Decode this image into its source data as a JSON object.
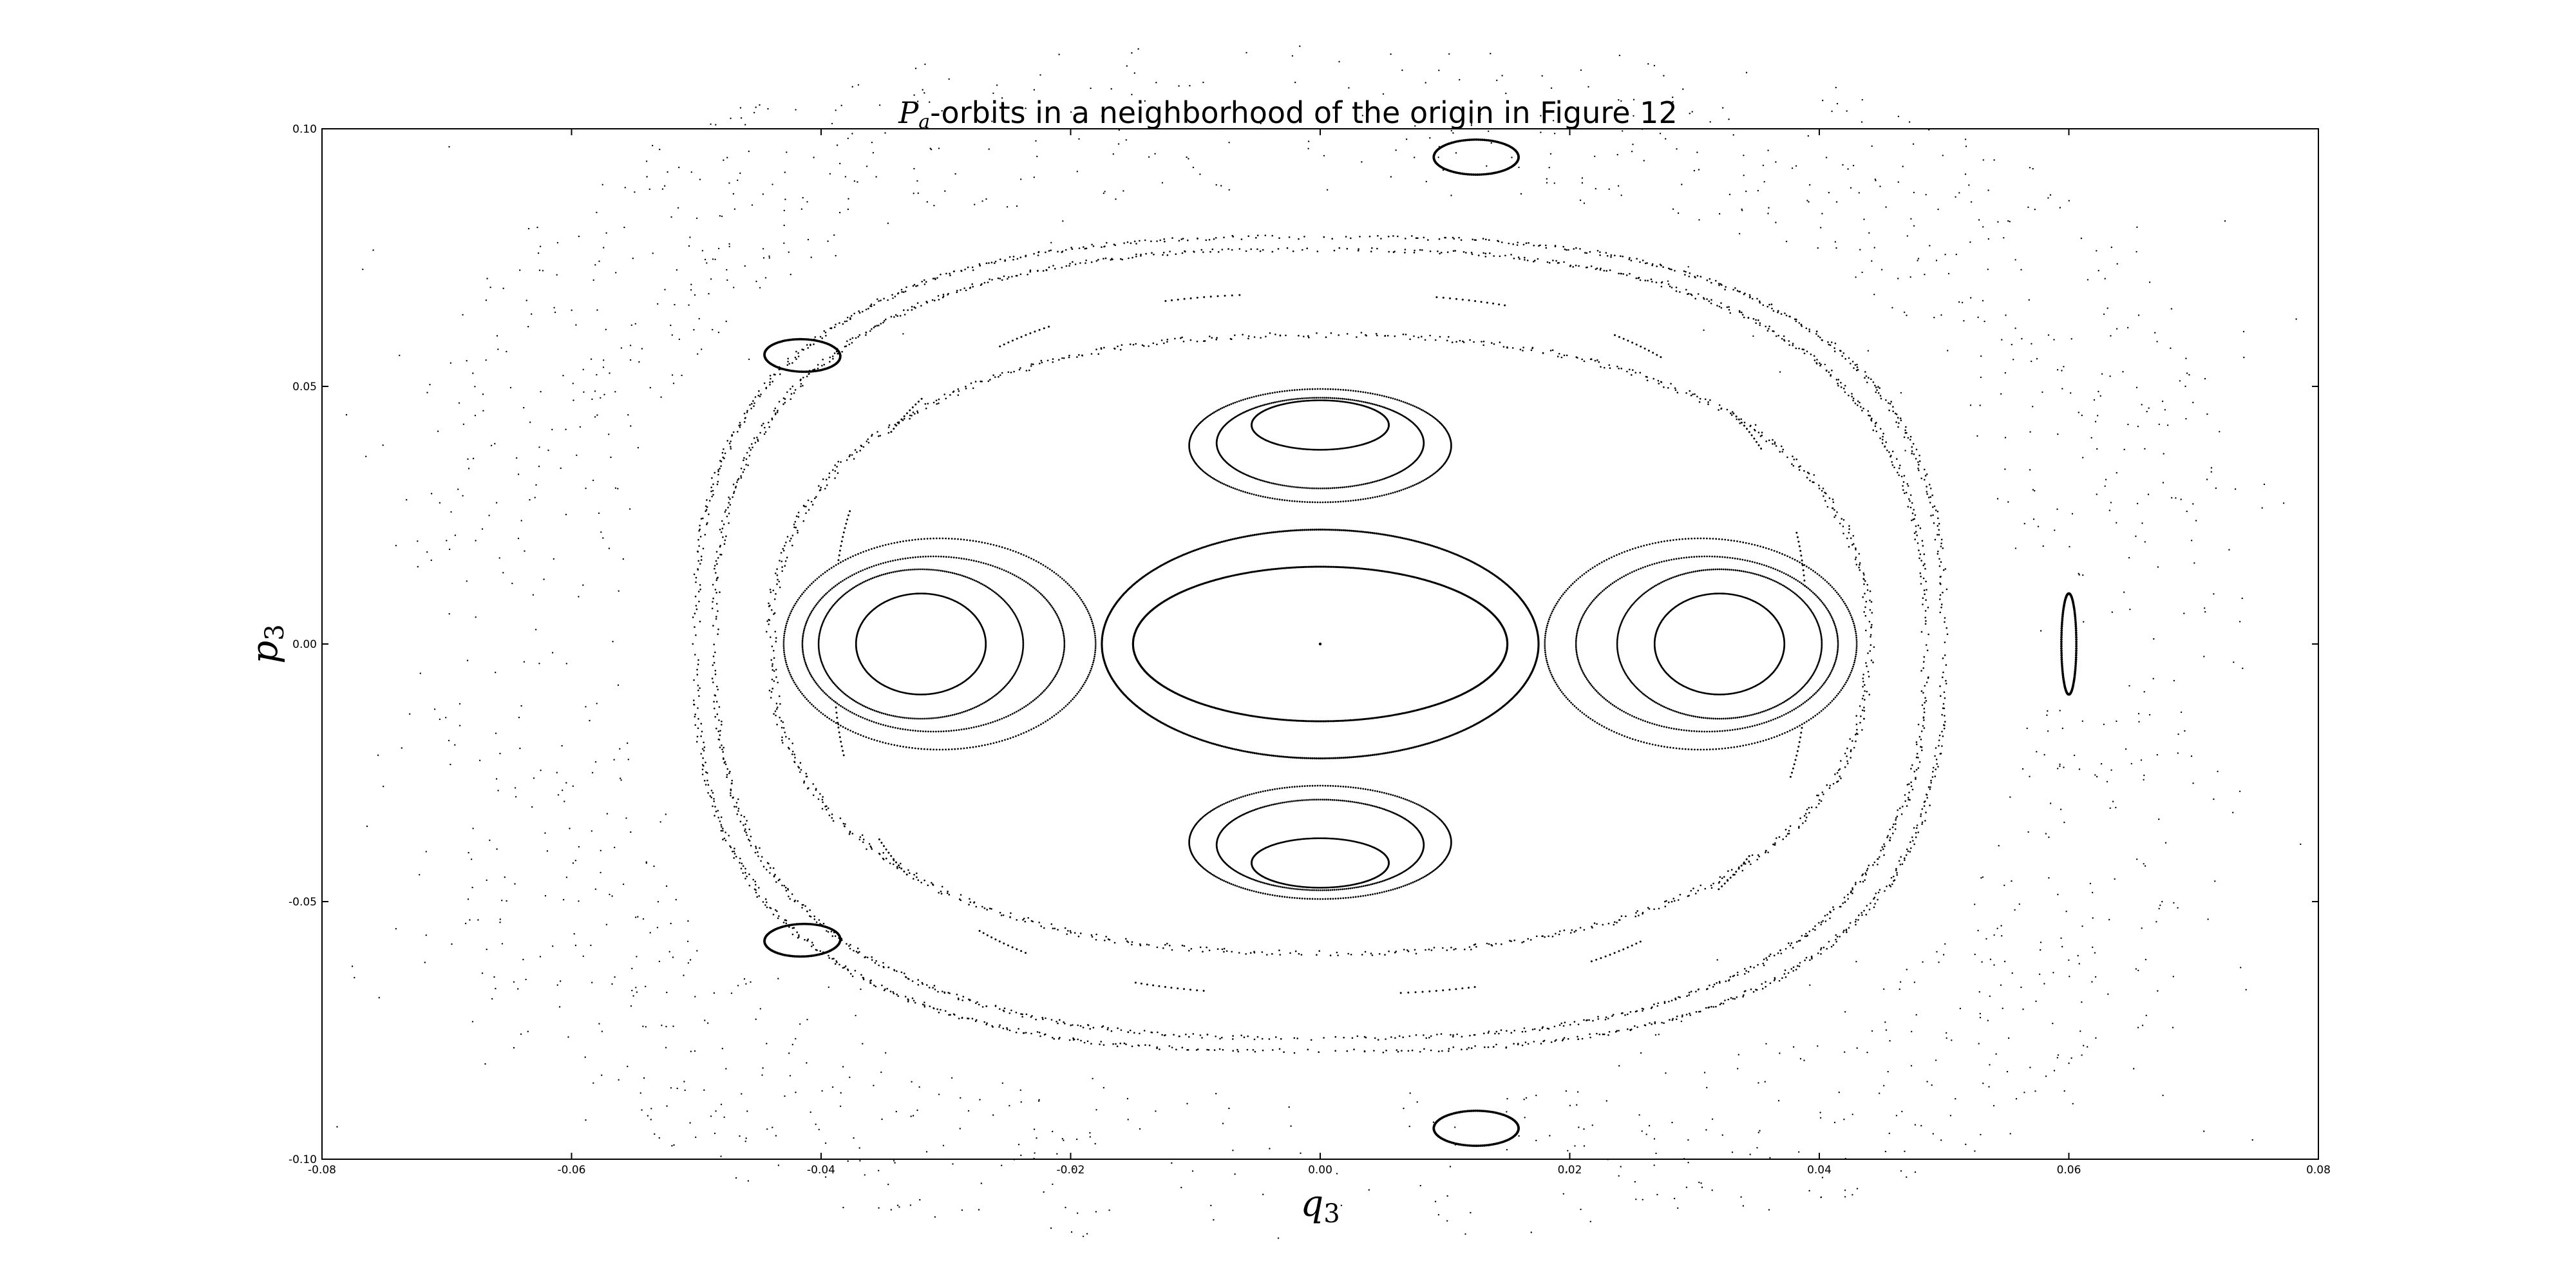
{
  "chart_data": {
    "type": "scatter",
    "title_symbol": "P",
    "title_subscript": "a",
    "title_rest": "-orbits in a neighborhood of the origin in Figure 12",
    "xlabel_main": "q",
    "xlabel_sub": "3",
    "ylabel_main": "p",
    "ylabel_sub": "3",
    "xlim": [
      -0.08,
      0.08
    ],
    "ylim": [
      -0.1,
      0.1
    ],
    "x_ticks": [
      "-0.08",
      "-0.06",
      "-0.04",
      "-0.02",
      "0.00",
      "0.02",
      "0.04",
      "0.06",
      "0.08"
    ],
    "y_ticks": [
      "-0.10",
      "-0.05",
      "0.00",
      "0.05",
      "0.10"
    ],
    "grid": false,
    "marker_color": "#000000",
    "point_count_estimate": "many thousands (Poincare section orbits)",
    "series": [
      {
        "values": [
          {
            "x": 0.0,
            "y": 0.0
          }
        ]
      },
      {
        "values": [
          {
            "x": 0.015,
            "y": 0.0
          },
          {
            "x": 0.0,
            "y": 0.015
          },
          {
            "x": -0.015,
            "y": 0.0
          },
          {
            "x": 0.0,
            "y": -0.015
          }
        ]
      },
      {
        "values": [
          {
            "x": 0.0175,
            "y": 0.0
          },
          {
            "x": 0.0,
            "y": 0.022
          },
          {
            "x": -0.0175,
            "y": 0.0
          },
          {
            "x": 0.0,
            "y": -0.022
          }
        ]
      },
      {
        "values": [
          {
            "x": 0.0,
            "y": 0.0425
          },
          {
            "x": 0.007,
            "y": 0.045
          },
          {
            "x": -0.007,
            "y": 0.045
          },
          {
            "x": 0.0,
            "y": 0.052
          }
        ]
      },
      {
        "values": [
          {
            "x": 0.0,
            "y": -0.0425
          },
          {
            "x": 0.007,
            "y": -0.045
          },
          {
            "x": -0.007,
            "y": -0.045
          },
          {
            "x": 0.0,
            "y": -0.052
          }
        ]
      },
      {
        "values": [
          {
            "x": 0.032,
            "y": 0.0
          },
          {
            "x": 0.027,
            "y": 0.0
          },
          {
            "x": 0.037,
            "y": 0.0
          },
          {
            "x": 0.032,
            "y": 0.01
          }
        ]
      },
      {
        "values": [
          {
            "x": -0.032,
            "y": 0.0
          },
          {
            "x": -0.027,
            "y": 0.0
          },
          {
            "x": -0.037,
            "y": 0.0
          },
          {
            "x": -0.032,
            "y": 0.01
          }
        ]
      },
      {
        "values": [
          {
            "x": 0.05,
            "y": 0.0
          },
          {
            "x": 0.0,
            "y": 0.078
          },
          {
            "x": -0.05,
            "y": 0.0
          },
          {
            "x": 0.0,
            "y": -0.078
          }
        ]
      },
      {
        "values": [
          {
            "x": 0.06,
            "y": 0.0
          },
          {
            "x": -0.042,
            "y": 0.056
          },
          {
            "x": -0.042,
            "y": -0.058
          },
          {
            "x": 0.012,
            "y": 0.094
          },
          {
            "x": 0.012,
            "y": -0.094
          }
        ]
      }
    ]
  }
}
